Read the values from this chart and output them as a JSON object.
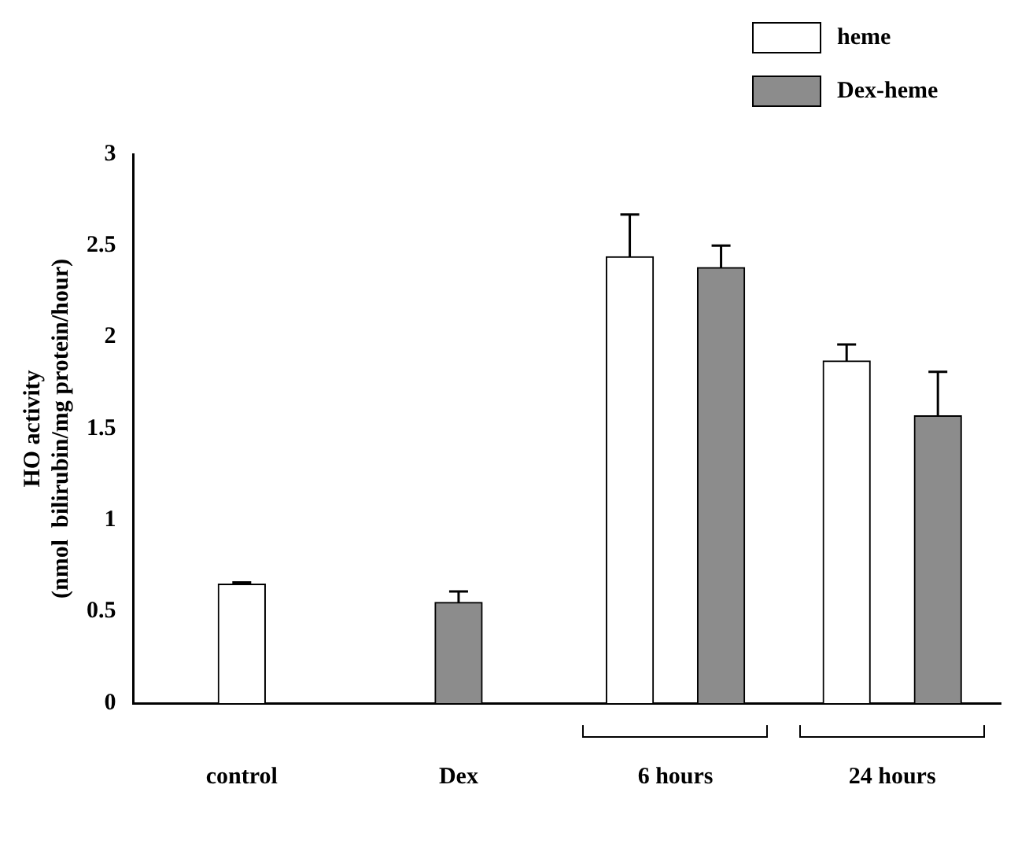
{
  "chart_data": {
    "type": "bar",
    "ylabel": "HO activity\n(nmol  bilirubin/mg protein/hour)",
    "categories": [
      "control",
      "Dex",
      "6 hours",
      "24 hours"
    ],
    "series": [
      {
        "name": "heme",
        "color": "#ffffff",
        "values": [
          0.65,
          null,
          2.44,
          1.87
        ],
        "errors": [
          [
            0.65,
            0.66
          ],
          null,
          [
            2.44,
            2.67
          ],
          [
            1.87,
            1.96
          ]
        ]
      },
      {
        "name": "Dex-heme",
        "color": "#8c8c8c",
        "values": [
          null,
          0.55,
          2.38,
          1.57
        ],
        "errors": [
          null,
          [
            0.55,
            0.61
          ],
          [
            2.38,
            2.5
          ],
          [
            1.57,
            1.81
          ]
        ]
      }
    ],
    "ylim": [
      0,
      3
    ],
    "yticks": [
      0,
      0.5,
      1,
      1.5,
      2,
      2.5,
      3
    ],
    "grid": false,
    "legend": "top right"
  }
}
